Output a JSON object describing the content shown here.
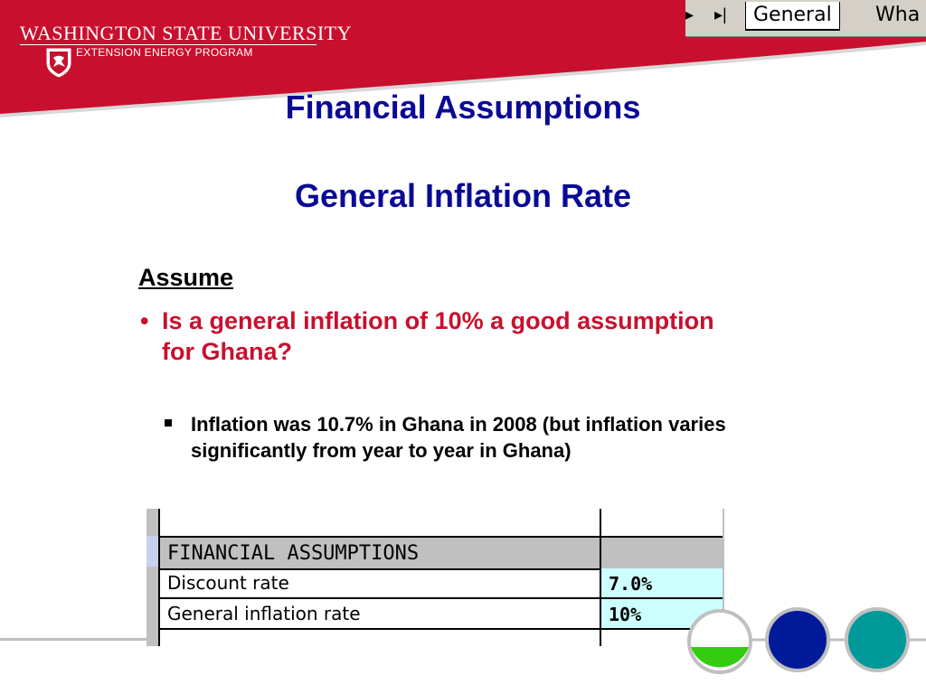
{
  "header": {
    "university": "WASHINGTON STATE UNIVERSITY",
    "program": "EXTENSION ENERGY PROGRAM",
    "seal_icon": "wsu-cougar-seal",
    "colors": {
      "crimson": "#c8102e",
      "title_blue": "#0a0a96"
    }
  },
  "sheet_tabs": {
    "items": [
      {
        "label": "General"
      },
      {
        "label": "Wha"
      }
    ]
  },
  "slide": {
    "title": "Financial Assumptions",
    "subtitle": "General Inflation Rate",
    "assume_heading": "Assume",
    "bullet": "Is a general inflation of 10% a good assumption for Ghana?",
    "sub_bullet": "Inflation was 10.7% in Ghana in 2008 (but inflation varies significantly from year to year in Ghana)"
  },
  "spreadsheet": {
    "header": "FINANCIAL ASSUMPTIONS",
    "rows": [
      {
        "label": "Discount rate",
        "value": "7.0%"
      },
      {
        "label": "General inflation rate",
        "value": "10%"
      }
    ]
  }
}
